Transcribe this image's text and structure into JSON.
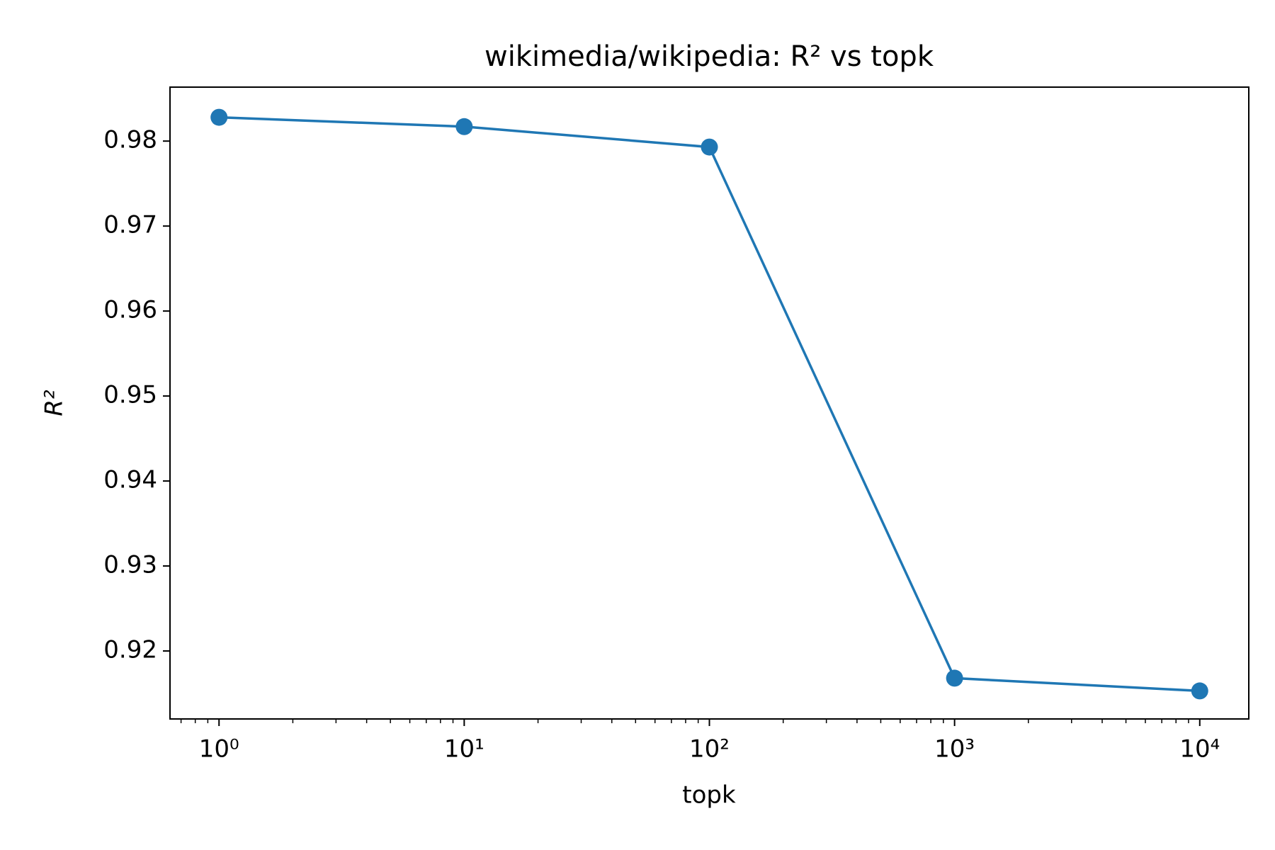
{
  "chart_data": {
    "type": "line",
    "title": "wikimedia/wikipedia: R² vs topk",
    "x_label": "topk",
    "y_label": "R²",
    "x": [
      1,
      10,
      100,
      1000,
      10000
    ],
    "series": [
      {
        "name": "R²",
        "color": "#1f77b4",
        "values": [
          0.9828,
          0.9817,
          0.9793,
          0.9168,
          0.9153
        ]
      }
    ],
    "x_log": true,
    "minor_ticks": true,
    "markers": true,
    "xlim": [
      0.631,
      15849
    ],
    "xticks": [
      {
        "value": 1,
        "label": "10⁰"
      },
      {
        "value": 10,
        "label": "10¹"
      },
      {
        "value": 100,
        "label": "10²"
      },
      {
        "value": 1000,
        "label": "10³"
      },
      {
        "value": 10000,
        "label": "10⁴"
      }
    ],
    "ylim": [
      0.912,
      0.98635
    ],
    "yticks": [
      0.92,
      0.93,
      0.94,
      0.95,
      0.96,
      0.97,
      0.98
    ],
    "grid": false
  }
}
